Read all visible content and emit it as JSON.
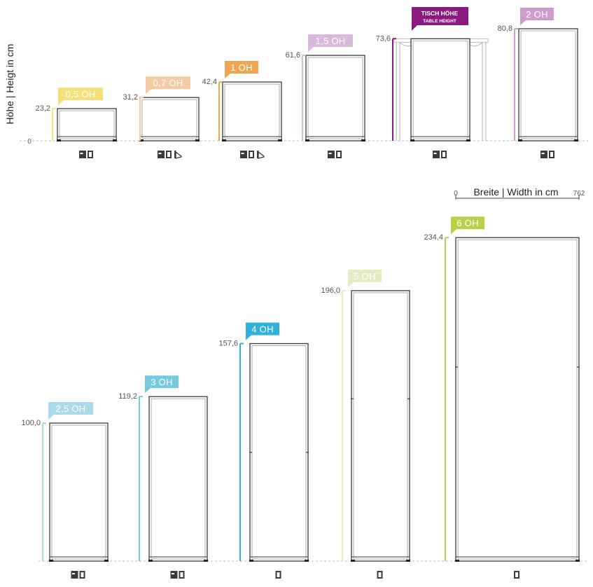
{
  "axis": {
    "y_label": "Höhe | Heigt in cm",
    "baseline_label": "0",
    "width_label": "Breite | Width in cm",
    "width_min": "0",
    "width_max": "762"
  },
  "table_height": {
    "title": "TISCH HÖHE",
    "subtitle": "TABLE HEIGHT",
    "color": "#8b1a80"
  },
  "cabinets": [
    {
      "label": "0,5 OH",
      "value": "23,2",
      "height_cm": 23.2,
      "row": 1,
      "color": "#f5e07a",
      "icons": [
        "drawer-icon",
        "door-icon"
      ]
    },
    {
      "label": "0,7 OH",
      "value": "31,2",
      "height_cm": 31.2,
      "row": 1,
      "color": "#f6cba3",
      "icons": [
        "drawer-icon",
        "door-icon",
        "flap-icon"
      ]
    },
    {
      "label": "1 OH",
      "value": "42,4",
      "height_cm": 42.4,
      "row": 1,
      "color": "#f0a550",
      "icons": [
        "drawer-icon",
        "door-icon",
        "flap-icon"
      ]
    },
    {
      "label": "1,5 OH",
      "value": "61,6",
      "height_cm": 61.6,
      "row": 1,
      "color": "#dcb8dc",
      "icons": [
        "drawer-icon",
        "door-icon"
      ]
    },
    {
      "label": "",
      "value": "73,6",
      "height_cm": 73.6,
      "row": 1,
      "color": "#8b1a80",
      "icons": [
        "drawer-icon",
        "door-icon"
      ]
    },
    {
      "label": "2 OH",
      "value": "80,8",
      "height_cm": 80.8,
      "row": 1,
      "color": "#cf9ccc",
      "icons": [
        "drawer-icon",
        "door-icon"
      ]
    },
    {
      "label": "2,5 OH",
      "value": "100,0",
      "height_cm": 100.0,
      "row": 2,
      "color": "#a9dbe8",
      "icons": [
        "drawer-icon",
        "door-icon"
      ]
    },
    {
      "label": "3 OH",
      "value": "119,2",
      "height_cm": 119.2,
      "row": 2,
      "color": "#76cbe0",
      "icons": [
        "drawer-icon",
        "door-icon"
      ]
    },
    {
      "label": "4 OH",
      "value": "157,6",
      "height_cm": 157.6,
      "row": 2,
      "color": "#2fb1dc",
      "icons": [
        "door-icon"
      ]
    },
    {
      "label": "5 OH",
      "value": "196,0",
      "height_cm": 196.0,
      "row": 2,
      "color": "#e6ebc4",
      "icons": [
        "door-icon"
      ]
    },
    {
      "label": "6 OH",
      "value": "234,4",
      "height_cm": 234.4,
      "row": 2,
      "color": "#bccf4a",
      "icons": [
        "door-icon"
      ]
    }
  ]
}
